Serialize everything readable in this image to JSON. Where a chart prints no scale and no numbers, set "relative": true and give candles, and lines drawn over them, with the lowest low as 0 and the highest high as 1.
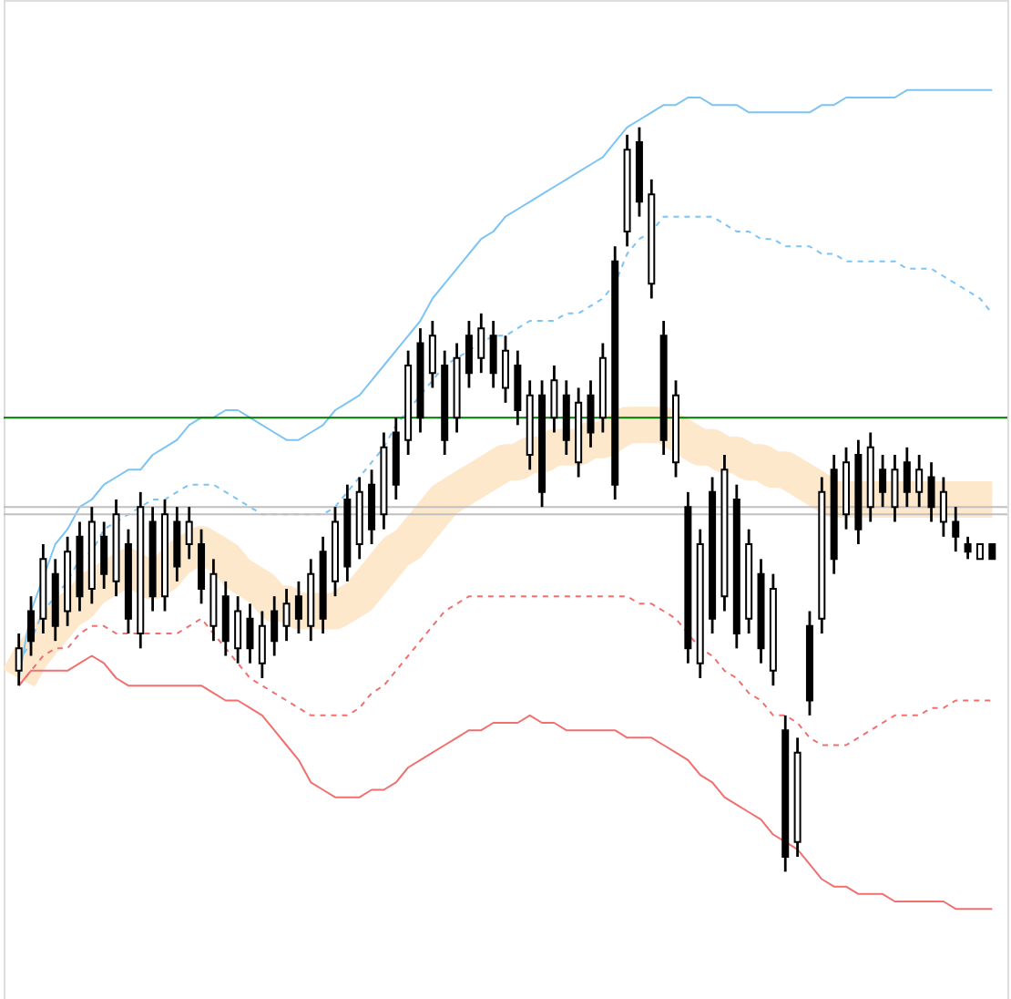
{
  "chart_data": {
    "type": "candlestick",
    "relative": true,
    "categories": [
      null,
      null,
      null,
      null,
      null,
      null,
      null,
      null,
      null,
      null,
      null,
      null,
      null,
      null,
      null,
      null,
      null,
      null,
      null,
      null,
      null,
      null,
      null,
      null,
      null,
      null,
      null,
      null,
      null,
      null,
      null,
      null,
      null,
      null,
      null,
      null,
      null,
      null,
      null,
      null,
      null,
      null,
      null,
      null,
      null,
      null,
      null,
      null,
      null,
      null,
      null,
      null,
      null,
      null,
      null,
      null,
      null,
      null,
      null,
      null,
      null,
      null,
      null,
      null,
      null,
      null,
      null,
      null,
      null,
      null,
      null,
      null,
      null,
      null,
      null,
      null,
      null,
      null,
      null,
      null,
      null
    ],
    "ohlc": [
      [
        0.27,
        0.32,
        0.25,
        0.3
      ],
      [
        0.35,
        0.37,
        0.29,
        0.31
      ],
      [
        0.34,
        0.44,
        0.32,
        0.42
      ],
      [
        0.4,
        0.42,
        0.31,
        0.33
      ],
      [
        0.35,
        0.45,
        0.33,
        0.43
      ],
      [
        0.45,
        0.47,
        0.35,
        0.37
      ],
      [
        0.38,
        0.49,
        0.36,
        0.47
      ],
      [
        0.45,
        0.47,
        0.38,
        0.4
      ],
      [
        0.39,
        0.5,
        0.37,
        0.48
      ],
      [
        0.44,
        0.46,
        0.32,
        0.34
      ],
      [
        0.32,
        0.51,
        0.3,
        0.49
      ],
      [
        0.47,
        0.49,
        0.35,
        0.37
      ],
      [
        0.37,
        0.5,
        0.35,
        0.48
      ],
      [
        0.47,
        0.49,
        0.39,
        0.41
      ],
      [
        0.44,
        0.49,
        0.42,
        0.47
      ],
      [
        0.44,
        0.46,
        0.36,
        0.38
      ],
      [
        0.33,
        0.42,
        0.31,
        0.4
      ],
      [
        0.37,
        0.39,
        0.29,
        0.31
      ],
      [
        0.3,
        0.37,
        0.28,
        0.35
      ],
      [
        0.34,
        0.36,
        0.28,
        0.3
      ],
      [
        0.28,
        0.35,
        0.26,
        0.33
      ],
      [
        0.35,
        0.37,
        0.29,
        0.31
      ],
      [
        0.33,
        0.38,
        0.31,
        0.36
      ],
      [
        0.37,
        0.39,
        0.32,
        0.34
      ],
      [
        0.33,
        0.42,
        0.31,
        0.4
      ],
      [
        0.43,
        0.45,
        0.32,
        0.34
      ],
      [
        0.39,
        0.49,
        0.37,
        0.47
      ],
      [
        0.5,
        0.52,
        0.39,
        0.41
      ],
      [
        0.44,
        0.53,
        0.42,
        0.51
      ],
      [
        0.52,
        0.54,
        0.44,
        0.46
      ],
      [
        0.48,
        0.59,
        0.46,
        0.57
      ],
      [
        0.59,
        0.61,
        0.5,
        0.52
      ],
      [
        0.58,
        0.7,
        0.56,
        0.68
      ],
      [
        0.71,
        0.73,
        0.59,
        0.61
      ],
      [
        0.67,
        0.74,
        0.65,
        0.72
      ],
      [
        0.68,
        0.7,
        0.56,
        0.58
      ],
      [
        0.61,
        0.71,
        0.59,
        0.69
      ],
      [
        0.72,
        0.74,
        0.65,
        0.67
      ],
      [
        0.69,
        0.75,
        0.67,
        0.73
      ],
      [
        0.72,
        0.74,
        0.65,
        0.67
      ],
      [
        0.65,
        0.72,
        0.63,
        0.7
      ],
      [
        0.68,
        0.7,
        0.6,
        0.62
      ],
      [
        0.56,
        0.66,
        0.54,
        0.64
      ],
      [
        0.64,
        0.66,
        0.49,
        0.51
      ],
      [
        0.61,
        0.68,
        0.59,
        0.66
      ],
      [
        0.64,
        0.66,
        0.56,
        0.58
      ],
      [
        0.55,
        0.65,
        0.53,
        0.63
      ],
      [
        0.64,
        0.66,
        0.57,
        0.59
      ],
      [
        0.61,
        0.71,
        0.59,
        0.69
      ],
      [
        0.82,
        0.84,
        0.5,
        0.52
      ],
      [
        0.86,
        0.99,
        0.84,
        0.97
      ],
      [
        0.98,
        1.0,
        0.88,
        0.9
      ],
      [
        0.79,
        0.93,
        0.77,
        0.91
      ],
      [
        0.72,
        0.74,
        0.56,
        0.58
      ],
      [
        0.55,
        0.66,
        0.53,
        0.64
      ],
      [
        0.49,
        0.51,
        0.28,
        0.3
      ],
      [
        0.28,
        0.46,
        0.26,
        0.44
      ],
      [
        0.51,
        0.53,
        0.32,
        0.34
      ],
      [
        0.37,
        0.56,
        0.35,
        0.54
      ],
      [
        0.5,
        0.52,
        0.3,
        0.32
      ],
      [
        0.34,
        0.46,
        0.32,
        0.44
      ],
      [
        0.4,
        0.42,
        0.28,
        0.3
      ],
      [
        0.27,
        0.4,
        0.25,
        0.38
      ],
      [
        0.19,
        0.21,
        0.0,
        0.02
      ],
      [
        0.04,
        0.18,
        0.02,
        0.16
      ],
      [
        0.33,
        0.35,
        0.21,
        0.23
      ],
      [
        0.34,
        0.53,
        0.32,
        0.51
      ],
      [
        0.54,
        0.56,
        0.4,
        0.42
      ],
      [
        0.48,
        0.57,
        0.46,
        0.55
      ],
      [
        0.56,
        0.58,
        0.44,
        0.46
      ],
      [
        0.49,
        0.59,
        0.47,
        0.57
      ],
      [
        0.54,
        0.56,
        0.49,
        0.51
      ],
      [
        0.49,
        0.56,
        0.47,
        0.54
      ],
      [
        0.55,
        0.57,
        0.49,
        0.51
      ],
      [
        0.51,
        0.56,
        0.49,
        0.54
      ],
      [
        0.53,
        0.55,
        0.47,
        0.49
      ],
      [
        0.47,
        0.53,
        0.45,
        0.51
      ],
      [
        0.47,
        0.49,
        0.43,
        0.45
      ],
      [
        0.44,
        0.45,
        0.42,
        0.43
      ],
      [
        0.42,
        0.44,
        0.42,
        0.44
      ],
      [
        0.44,
        0.44,
        0.42,
        0.42
      ]
    ],
    "series": [
      {
        "type": "line",
        "color": "#fde8cc",
        "line_style": "solid",
        "values": [
          0.26,
          0.29,
          0.31,
          0.33,
          0.35,
          0.36,
          0.38,
          0.39,
          0.4,
          0.41,
          0.4,
          0.39,
          0.4,
          0.42,
          0.43,
          0.44,
          0.43,
          0.42,
          0.4,
          0.39,
          0.38,
          0.36,
          0.36,
          0.35,
          0.35,
          0.35,
          0.35,
          0.36,
          0.37,
          0.39,
          0.41,
          0.43,
          0.44,
          0.46,
          0.48,
          0.5,
          0.51,
          0.52,
          0.53,
          0.54,
          0.55,
          0.55,
          0.56,
          0.56,
          0.57,
          0.57,
          0.57,
          0.58,
          0.58,
          0.59,
          0.6,
          0.6,
          0.6,
          0.6,
          0.59,
          0.58,
          0.57,
          0.57,
          0.56,
          0.56,
          0.55,
          0.55,
          0.54,
          0.54,
          0.53,
          0.52,
          0.51,
          0.5,
          0.5,
          0.5,
          0.5,
          0.5,
          0.5,
          0.5,
          0.5,
          0.5,
          0.5,
          0.5,
          0.5,
          0.5,
          0.5
        ]
      },
      {
        "type": "line",
        "color": "#7cc4f4",
        "line_style": "solid",
        "values": [
          0.26,
          0.35,
          null,
          0.44,
          0.46,
          0.49,
          0.5,
          0.52,
          0.53,
          0.54,
          0.54,
          0.56,
          0.57,
          0.58,
          0.6,
          0.61,
          0.61,
          0.62,
          0.62,
          0.61,
          0.6,
          0.59,
          0.58,
          0.58,
          0.59,
          0.6,
          0.62,
          0.63,
          0.64,
          0.66,
          0.68,
          0.7,
          0.72,
          0.74,
          0.77,
          0.79,
          0.81,
          0.83,
          0.85,
          0.86,
          0.88,
          0.89,
          0.9,
          0.91,
          0.92,
          0.93,
          0.94,
          0.95,
          0.96,
          0.98,
          1.0,
          1.01,
          1.02,
          1.03,
          1.03,
          1.04,
          1.04,
          1.03,
          1.03,
          1.03,
          1.02,
          1.02,
          1.02,
          1.02,
          1.02,
          1.02,
          1.03,
          1.03,
          1.04,
          1.04,
          1.04,
          1.04,
          1.04,
          1.05,
          1.05,
          1.05,
          1.05,
          1.05,
          1.05,
          1.05,
          1.05
        ]
      },
      {
        "type": "line",
        "color": "#7cc4f4",
        "line_style": "dashed",
        "values": [
          0.28,
          0.31,
          0.35,
          0.37,
          0.39,
          0.42,
          0.43,
          0.46,
          0.47,
          0.48,
          0.49,
          0.5,
          0.5,
          0.51,
          0.52,
          0.52,
          0.52,
          0.51,
          0.5,
          0.49,
          0.48,
          0.48,
          0.48,
          0.48,
          0.48,
          0.48,
          0.49,
          0.51,
          0.53,
          0.55,
          0.57,
          0.6,
          0.62,
          0.64,
          0.66,
          0.68,
          0.69,
          0.7,
          0.71,
          0.72,
          0.72,
          0.73,
          0.74,
          0.74,
          0.74,
          0.75,
          0.75,
          0.76,
          0.77,
          0.79,
          0.83,
          0.85,
          0.86,
          0.88,
          0.88,
          0.88,
          0.88,
          0.88,
          0.87,
          0.86,
          0.86,
          0.85,
          0.85,
          0.84,
          0.84,
          0.84,
          0.83,
          0.83,
          0.82,
          0.82,
          0.82,
          0.82,
          0.82,
          0.81,
          0.81,
          0.81,
          0.8,
          0.79,
          0.78,
          0.77,
          0.75
        ]
      },
      {
        "type": "line",
        "color": "#f07070",
        "line_style": "dashed",
        "values": [
          0.25,
          0.27,
          0.29,
          0.3,
          0.3,
          0.32,
          0.33,
          0.33,
          0.32,
          0.32,
          0.32,
          0.32,
          0.32,
          0.32,
          0.33,
          0.34,
          0.32,
          0.3,
          0.28,
          0.26,
          0.25,
          0.24,
          0.23,
          0.22,
          0.21,
          0.21,
          0.21,
          0.21,
          0.22,
          0.24,
          0.25,
          0.27,
          0.29,
          0.31,
          0.33,
          0.35,
          0.36,
          0.37,
          0.37,
          0.37,
          0.37,
          0.37,
          0.37,
          0.37,
          0.37,
          0.37,
          0.37,
          0.37,
          0.37,
          0.37,
          0.37,
          0.36,
          0.36,
          0.35,
          0.34,
          0.32,
          0.3,
          0.29,
          0.27,
          0.26,
          0.24,
          0.23,
          0.21,
          0.21,
          0.2,
          0.18,
          0.17,
          0.17,
          0.17,
          0.18,
          0.19,
          0.2,
          0.21,
          0.21,
          0.21,
          0.22,
          0.22,
          0.23,
          0.23,
          0.23,
          0.23
        ]
      },
      {
        "type": "line",
        "color": "#f07070",
        "line_style": "solid",
        "values": [
          0.25,
          0.27,
          0.27,
          0.27,
          0.27,
          0.28,
          0.29,
          0.28,
          0.26,
          0.25,
          0.25,
          0.25,
          0.25,
          0.25,
          0.25,
          0.25,
          0.24,
          0.23,
          0.23,
          0.22,
          0.21,
          0.19,
          0.17,
          0.15,
          0.12,
          0.11,
          0.1,
          0.1,
          0.1,
          0.11,
          0.11,
          0.12,
          0.14,
          0.15,
          0.16,
          0.17,
          0.18,
          0.19,
          0.19,
          0.2,
          0.2,
          0.2,
          0.21,
          0.2,
          0.2,
          0.19,
          0.19,
          0.19,
          0.19,
          0.19,
          0.18,
          0.18,
          0.18,
          0.17,
          0.16,
          0.15,
          0.13,
          0.12,
          0.1,
          0.09,
          0.08,
          0.07,
          0.05,
          0.04,
          0.03,
          0.01,
          -0.01,
          -0.02,
          -0.02,
          -0.03,
          -0.03,
          -0.03,
          -0.04,
          -0.04,
          -0.04,
          -0.04,
          -0.04,
          -0.05,
          -0.05,
          -0.05,
          -0.05
        ]
      }
    ],
    "ref_lines": [
      {
        "axis": "y",
        "value": 0.61,
        "color": "#007700",
        "line_style": "solid"
      },
      {
        "axis": "y",
        "value": 0.49,
        "color": "#c0c0c0",
        "line_style": "solid"
      },
      {
        "axis": "y",
        "value": 0.48,
        "color": "#c0c0c0",
        "line_style": "solid"
      }
    ]
  }
}
